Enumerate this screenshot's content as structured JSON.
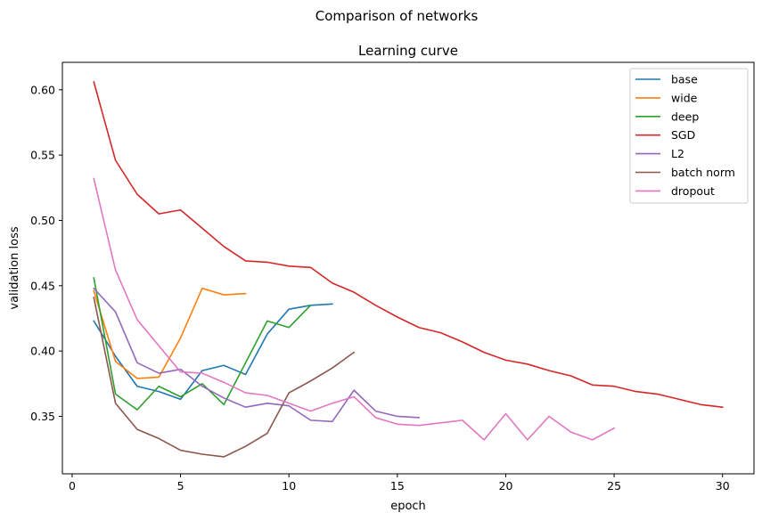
{
  "suptitle": "Comparison of networks",
  "chart_data": {
    "type": "line",
    "title": "Learning curve",
    "xlabel": "epoch",
    "ylabel": "validation loss",
    "xlim": [
      -0.45,
      31.45
    ],
    "ylim": [
      0.306,
      0.621
    ],
    "xticks": [
      0,
      5,
      10,
      15,
      20,
      25,
      30
    ],
    "yticks": [
      0.35,
      0.4,
      0.45,
      0.5,
      0.55,
      0.6
    ],
    "ytick_labels": [
      "0.35",
      "0.40",
      "0.45",
      "0.50",
      "0.55",
      "0.60"
    ],
    "grid": false,
    "legend_position": "top-right",
    "series": [
      {
        "name": "base",
        "color": "#1f77b4",
        "x": [
          1,
          2,
          3,
          4,
          5,
          6,
          7,
          8,
          9,
          10,
          11,
          12
        ],
        "values": [
          0.423,
          0.396,
          0.373,
          0.369,
          0.363,
          0.385,
          0.389,
          0.382,
          0.413,
          0.432,
          0.435,
          0.436
        ]
      },
      {
        "name": "wide",
        "color": "#ff7f0e",
        "x": [
          1,
          2,
          3,
          4,
          5,
          6,
          7,
          8
        ],
        "values": [
          0.446,
          0.392,
          0.379,
          0.38,
          0.41,
          0.448,
          0.443,
          0.444
        ]
      },
      {
        "name": "deep",
        "color": "#2ca02c",
        "x": [
          1,
          2,
          3,
          4,
          5,
          6,
          7,
          8,
          9,
          10,
          11
        ],
        "values": [
          0.456,
          0.367,
          0.355,
          0.373,
          0.365,
          0.375,
          0.359,
          0.391,
          0.423,
          0.418,
          0.435
        ]
      },
      {
        "name": "SGD",
        "color": "#d62728",
        "x": [
          1,
          2,
          3,
          4,
          5,
          6,
          7,
          8,
          9,
          10,
          11,
          12,
          13,
          14,
          15,
          16,
          17,
          18,
          19,
          20,
          21,
          22,
          23,
          24,
          25,
          26,
          27,
          28,
          29,
          30
        ],
        "values": [
          0.606,
          0.546,
          0.52,
          0.505,
          0.508,
          0.494,
          0.48,
          0.469,
          0.468,
          0.465,
          0.464,
          0.452,
          0.445,
          0.435,
          0.426,
          0.418,
          0.414,
          0.407,
          0.399,
          0.393,
          0.39,
          0.385,
          0.381,
          0.374,
          0.373,
          0.369,
          0.367,
          0.363,
          0.359,
          0.357
        ]
      },
      {
        "name": "L2",
        "color": "#9467bd",
        "x": [
          1,
          2,
          3,
          4,
          5,
          6,
          7,
          8,
          9,
          10,
          11,
          12,
          13,
          14,
          15,
          16
        ],
        "values": [
          0.448,
          0.43,
          0.391,
          0.383,
          0.386,
          0.373,
          0.364,
          0.357,
          0.36,
          0.358,
          0.347,
          0.346,
          0.37,
          0.354,
          0.35,
          0.349
        ]
      },
      {
        "name": "batch norm",
        "color": "#8c564b",
        "x": [
          1,
          2,
          3,
          4,
          5,
          6,
          7,
          8,
          9,
          10,
          11,
          12,
          13
        ],
        "values": [
          0.441,
          0.36,
          0.34,
          0.333,
          0.324,
          0.321,
          0.319,
          0.327,
          0.337,
          0.368,
          0.377,
          0.387,
          0.399
        ]
      },
      {
        "name": "dropout",
        "color": "#e377c2",
        "x": [
          1,
          2,
          3,
          4,
          5,
          6,
          7,
          8,
          9,
          10,
          11,
          12,
          13,
          14,
          15,
          16,
          17,
          18,
          19,
          20,
          21,
          22,
          23,
          24,
          25
        ],
        "values": [
          0.532,
          0.462,
          0.424,
          0.404,
          0.384,
          0.383,
          0.376,
          0.368,
          0.366,
          0.36,
          0.354,
          0.36,
          0.365,
          0.349,
          0.344,
          0.343,
          0.345,
          0.347,
          0.332,
          0.352,
          0.332,
          0.35,
          0.338,
          0.332,
          0.341
        ]
      }
    ]
  }
}
